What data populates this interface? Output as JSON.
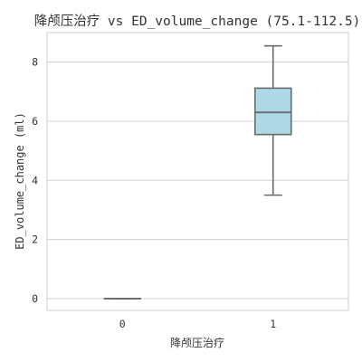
{
  "chart_data": {
    "type": "box",
    "title": "降颅压治疗 vs ED_volume_change (75.1-112.5)",
    "xlabel": "降颅压治疗",
    "ylabel": "ED_volume_change (ml)",
    "categories": [
      "0",
      "1"
    ],
    "boxes": [
      {
        "category": "0",
        "min": 0.0,
        "q1": 0.0,
        "median": 0.0,
        "q3": 0.0,
        "max": 0.0
      },
      {
        "category": "1",
        "min": 3.5,
        "q1": 5.55,
        "median": 6.3,
        "q3": 7.12,
        "max": 8.55
      }
    ],
    "ylim": [
      -0.4,
      9.0
    ],
    "yticks": [
      0,
      2,
      4,
      6,
      8
    ],
    "grid": "horizontal",
    "box_color": "#add8e6",
    "line_color": "#6b6b6b",
    "grid_color": "#d3d3d3",
    "frame_color": "#cccccc"
  }
}
